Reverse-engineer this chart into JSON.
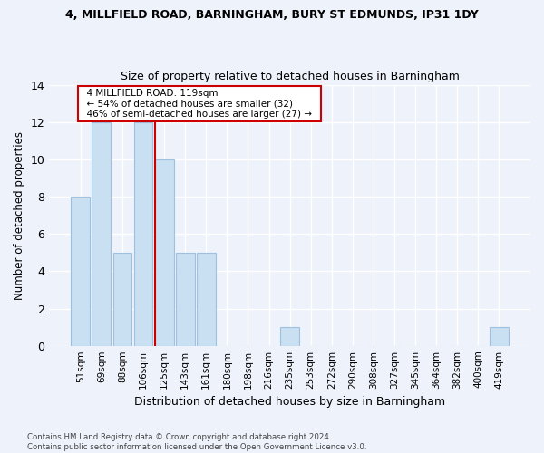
{
  "title_line1": "4, MILLFIELD ROAD, BARNINGHAM, BURY ST EDMUNDS, IP31 1DY",
  "title_line2": "Size of property relative to detached houses in Barningham",
  "xlabel": "Distribution of detached houses by size in Barningham",
  "ylabel": "Number of detached properties",
  "categories": [
    "51sqm",
    "69sqm",
    "88sqm",
    "106sqm",
    "125sqm",
    "143sqm",
    "161sqm",
    "180sqm",
    "198sqm",
    "216sqm",
    "235sqm",
    "253sqm",
    "272sqm",
    "290sqm",
    "308sqm",
    "327sqm",
    "345sqm",
    "364sqm",
    "382sqm",
    "400sqm",
    "419sqm"
  ],
  "values": [
    8,
    12,
    5,
    12,
    10,
    5,
    5,
    0,
    0,
    0,
    1,
    0,
    0,
    0,
    0,
    0,
    0,
    0,
    0,
    0,
    1
  ],
  "bar_color": "#c9dff2",
  "bar_edge_color": "#a0c0e0",
  "vline_color": "#cc0000",
  "annotation_text": "  4 MILLFIELD ROAD: 119sqm  \n  ← 54% of detached houses are smaller (32)  \n  46% of semi-detached houses are larger (27) →  ",
  "annotation_box_color": "white",
  "annotation_box_edge_color": "#cc0000",
  "ylim": [
    0,
    14
  ],
  "yticks": [
    0,
    2,
    4,
    6,
    8,
    10,
    12,
    14
  ],
  "background_color": "#eef2fb",
  "grid_color": "white",
  "footnote": "Contains HM Land Registry data © Crown copyright and database right 2024.\nContains public sector information licensed under the Open Government Licence v3.0."
}
